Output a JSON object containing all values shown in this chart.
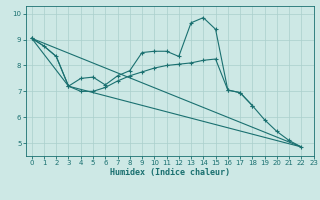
{
  "xlabel": "Humidex (Indice chaleur)",
  "xlim": [
    -0.5,
    23
  ],
  "ylim": [
    4.5,
    10.3
  ],
  "yticks": [
    5,
    6,
    7,
    8,
    9,
    10
  ],
  "xticks": [
    0,
    1,
    2,
    3,
    4,
    5,
    6,
    7,
    8,
    9,
    10,
    11,
    12,
    13,
    14,
    15,
    16,
    17,
    18,
    19,
    20,
    21,
    22,
    23
  ],
  "background_color": "#cde8e5",
  "grid_color": "#aacfcc",
  "line_color": "#1a7070",
  "series": [
    {
      "x": [
        0,
        1,
        2,
        3,
        4,
        5,
        6,
        7,
        8,
        9,
        10,
        11,
        12,
        13,
        14,
        15,
        16,
        17,
        18
      ],
      "y": [
        9.05,
        8.75,
        8.35,
        7.2,
        7.5,
        7.55,
        7.25,
        7.6,
        7.8,
        8.5,
        8.55,
        8.55,
        8.35,
        9.65,
        9.85,
        9.4,
        7.05,
        6.95,
        6.45
      ],
      "has_markers": true
    },
    {
      "x": [
        0,
        22
      ],
      "y": [
        9.05,
        4.85
      ],
      "has_markers": false
    },
    {
      "x": [
        0,
        1,
        2,
        3,
        22
      ],
      "y": [
        9.05,
        8.75,
        8.35,
        7.2,
        4.85
      ],
      "has_markers": false
    },
    {
      "x": [
        0,
        3,
        4,
        5,
        6,
        7,
        8,
        9,
        10,
        11,
        12,
        13,
        14,
        15,
        16,
        17,
        18,
        19,
        20,
        21,
        22
      ],
      "y": [
        9.05,
        7.2,
        7.0,
        7.0,
        7.15,
        7.4,
        7.6,
        7.75,
        7.9,
        8.0,
        8.05,
        8.1,
        8.2,
        8.25,
        7.05,
        6.95,
        6.45,
        5.9,
        5.45,
        5.1,
        4.85
      ],
      "has_markers": true
    }
  ]
}
